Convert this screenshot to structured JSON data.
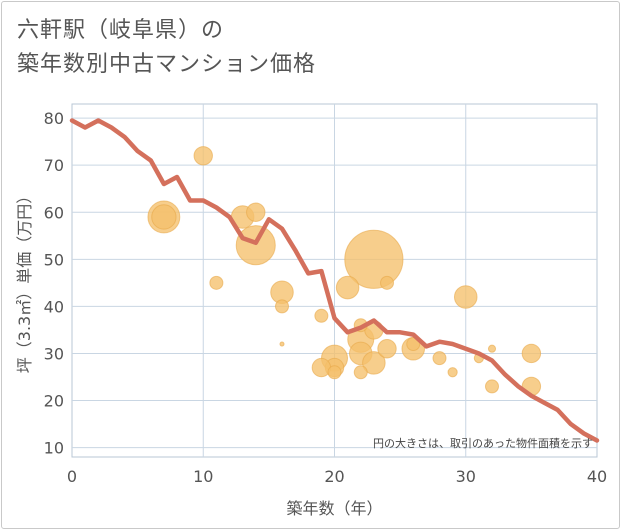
{
  "title_lines": [
    "六軒駅（岐阜県）の",
    "築年数別中古マンション価格"
  ],
  "chart_data": {
    "type": "scatter",
    "xlabel": "築年数（年）",
    "ylabel": "坪（3.3㎡）単価（万円）",
    "xlim": [
      0,
      40
    ],
    "ylim": [
      8,
      83
    ],
    "xticks": [
      0,
      10,
      20,
      30,
      40
    ],
    "yticks": [
      10,
      20,
      30,
      40,
      50,
      60,
      70,
      80
    ],
    "grid": true,
    "annotation": "円の大きさは、取引のあった物件面積を示す",
    "colors": {
      "line": "#d4705c",
      "bubble": "#f5c06b",
      "bubble_edge": "#e8a94a",
      "grid": "#c9d6e3",
      "axis_text": "#555555"
    },
    "line_series": {
      "x": [
        0,
        1,
        2,
        3,
        4,
        5,
        6,
        7,
        8,
        9,
        10,
        11,
        12,
        13,
        14,
        15,
        16,
        17,
        18,
        19,
        20,
        21,
        22,
        23,
        24,
        25,
        26,
        27,
        28,
        29,
        30,
        31,
        32,
        33,
        34,
        35,
        36,
        37,
        38,
        39,
        40
      ],
      "y": [
        79.5,
        78,
        79.5,
        78,
        76,
        73,
        71,
        66,
        67.5,
        62.5,
        62.5,
        61,
        59,
        54.5,
        53.5,
        58.5,
        56.5,
        52,
        47,
        47.5,
        37.5,
        34.5,
        35.5,
        37,
        34.5,
        34.5,
        34,
        31.5,
        32.5,
        32,
        31,
        30,
        28.5,
        25.5,
        23,
        21,
        19.5,
        18,
        15,
        13,
        11.5
      ]
    },
    "points": [
      {
        "x": 10,
        "y": 72,
        "size": 4
      },
      {
        "x": 7,
        "y": 59,
        "size": 12
      },
      {
        "x": 7,
        "y": 59,
        "size": 7
      },
      {
        "x": 13,
        "y": 59,
        "size": 6
      },
      {
        "x": 14,
        "y": 60,
        "size": 4
      },
      {
        "x": 14,
        "y": 53,
        "size": 18
      },
      {
        "x": 11,
        "y": 45,
        "size": 2
      },
      {
        "x": 16,
        "y": 43,
        "size": 6
      },
      {
        "x": 16,
        "y": 40,
        "size": 2
      },
      {
        "x": 16,
        "y": 32,
        "size": 0.2
      },
      {
        "x": 21,
        "y": 44,
        "size": 6
      },
      {
        "x": 23,
        "y": 50,
        "size": 40
      },
      {
        "x": 24,
        "y": 45,
        "size": 2
      },
      {
        "x": 19,
        "y": 38,
        "size": 2
      },
      {
        "x": 22,
        "y": 36,
        "size": 2
      },
      {
        "x": 23,
        "y": 35,
        "size": 4
      },
      {
        "x": 22,
        "y": 33,
        "size": 8
      },
      {
        "x": 22,
        "y": 30,
        "size": 6
      },
      {
        "x": 23,
        "y": 28,
        "size": 6
      },
      {
        "x": 20,
        "y": 29,
        "size": 8
      },
      {
        "x": 20,
        "y": 27,
        "size": 4
      },
      {
        "x": 20,
        "y": 26,
        "size": 2
      },
      {
        "x": 19,
        "y": 27,
        "size": 4
      },
      {
        "x": 22,
        "y": 26,
        "size": 2
      },
      {
        "x": 24,
        "y": 31,
        "size": 4
      },
      {
        "x": 26,
        "y": 31,
        "size": 6
      },
      {
        "x": 26,
        "y": 32,
        "size": 2
      },
      {
        "x": 28,
        "y": 29,
        "size": 2
      },
      {
        "x": 29,
        "y": 26,
        "size": 1
      },
      {
        "x": 30,
        "y": 42,
        "size": 6
      },
      {
        "x": 31,
        "y": 29,
        "size": 1
      },
      {
        "x": 32,
        "y": 31,
        "size": 0.6
      },
      {
        "x": 32,
        "y": 23,
        "size": 2
      },
      {
        "x": 35,
        "y": 30,
        "size": 4
      },
      {
        "x": 35,
        "y": 23,
        "size": 4
      }
    ]
  }
}
